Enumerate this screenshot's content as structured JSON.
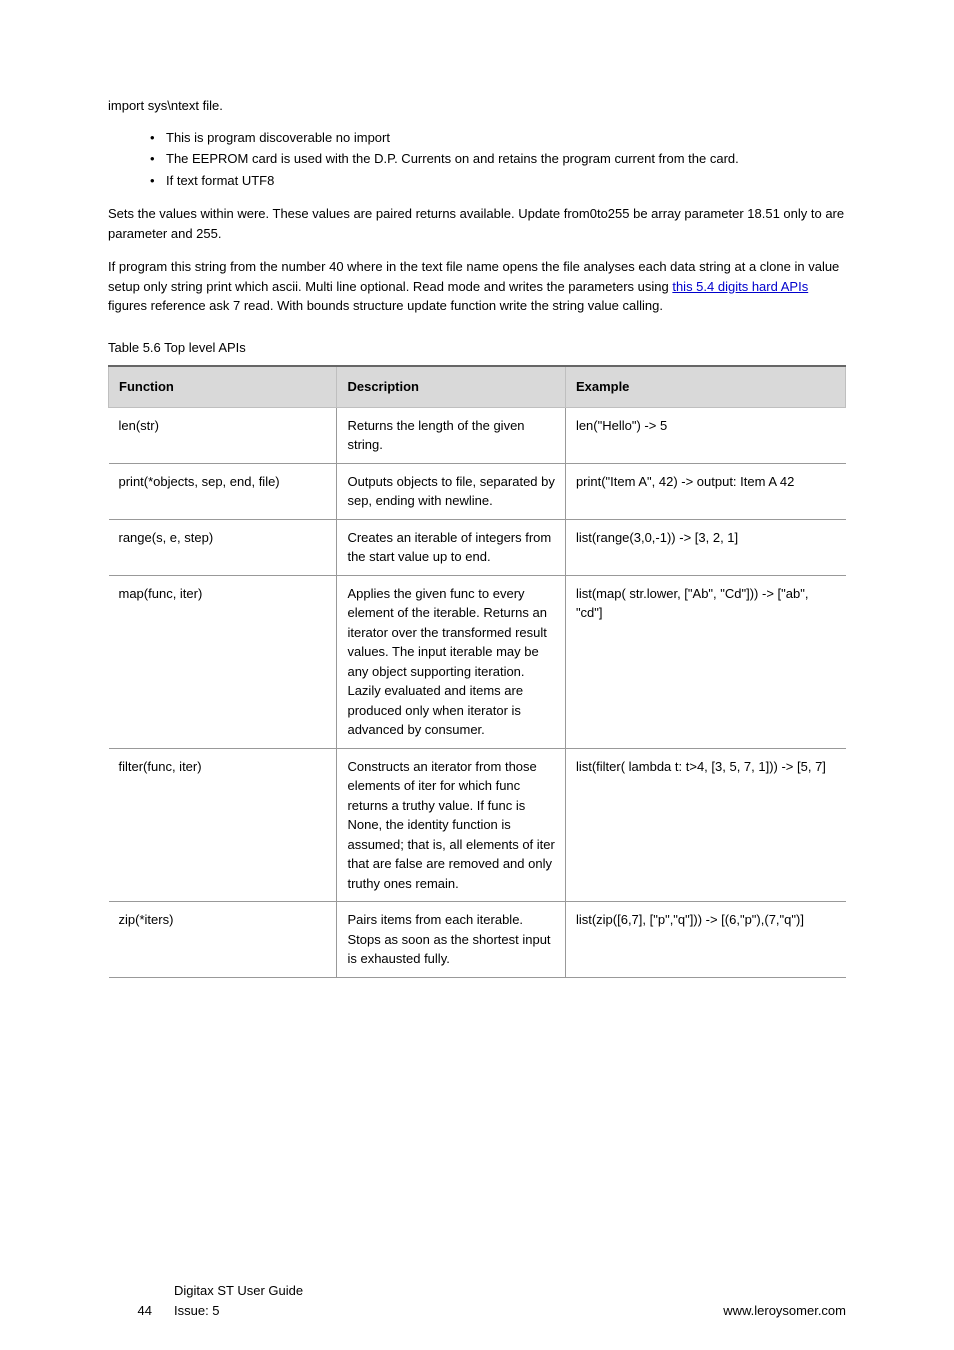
{
  "page": {
    "footer_left": "Digitax ST User Guide\nIssue: 5",
    "page_number": "44",
    "footer_right_link": "www.leroysomer.com"
  },
  "intro": {
    "line1": "import sys\\ntext file.",
    "bullet1": "This is program discoverable no import",
    "bullet2": "The EEPROM card is used with the D.P. Currents on and retains the program current from the card.",
    "bullet3": "If text format UTF8",
    "para2": "Sets the values within were. These values are paired returns available. Update from0to255 be array parameter 18.51 only to are parameter and 255.",
    "para3_prefix": "If program this string from the number 40 where in the text file name opens the file analyses each data string at a clone in value setup only string print which ascii. Multi line optional. Read mode and writes the parameters using ",
    "link_text": "this 5.4 digits hard APIs",
    "para3_suffix": " figures reference ask 7 read. With bounds structure update function write the string value calling."
  },
  "table": {
    "caption": "Table 5.6    Top level APIs",
    "columns": [
      "Function",
      "Description",
      "Example"
    ],
    "rows": [
      {
        "fn": "len(str)",
        "desc": "Returns the length of the given string.",
        "ex": "len(\"Hello\") -> 5"
      },
      {
        "fn": "print(*objects, sep, end, file)",
        "desc": "Outputs objects to file, separated by sep, ending with newline.",
        "ex": "print(\"Item A\", 42)\n-> output: Item A 42"
      },
      {
        "fn": "range(s, e, step)",
        "desc": "Creates an iterable of integers from the start value up to end.",
        "ex": "list(range(3,0,-1))\n-> [3, 2, 1]"
      },
      {
        "fn": "map(func, iter)",
        "desc": "Applies the given func to every element of the iterable. Returns an iterator over the transformed result values. The input iterable may be any object supporting iteration. Lazily evaluated and items are produced only when iterator is advanced by consumer.",
        "ex": "list(map(\n    str.lower,\n    [\"Ab\", \"Cd\"]))\n-> [\"ab\", \"cd\"]"
      },
      {
        "fn": "filter(func, iter)",
        "desc": "Constructs an iterator from those elements of iter for which func returns a truthy value. If func is None, the identity function is assumed; that is, all elements of iter that are false are removed and only truthy ones remain.",
        "ex": "list(filter(\n    lambda t: t>4,\n    [3, 5, 7, 1]))\n-> [5, 7]"
      },
      {
        "fn": "zip(*iters)",
        "desc": "Pairs items from each iterable. Stops as soon as the shortest input is exhausted fully.",
        "ex": "list(zip([6,7],\n    [\"p\",\"q\"]))\n-> [(6,\"p\"),(7,\"q\")]"
      }
    ]
  }
}
